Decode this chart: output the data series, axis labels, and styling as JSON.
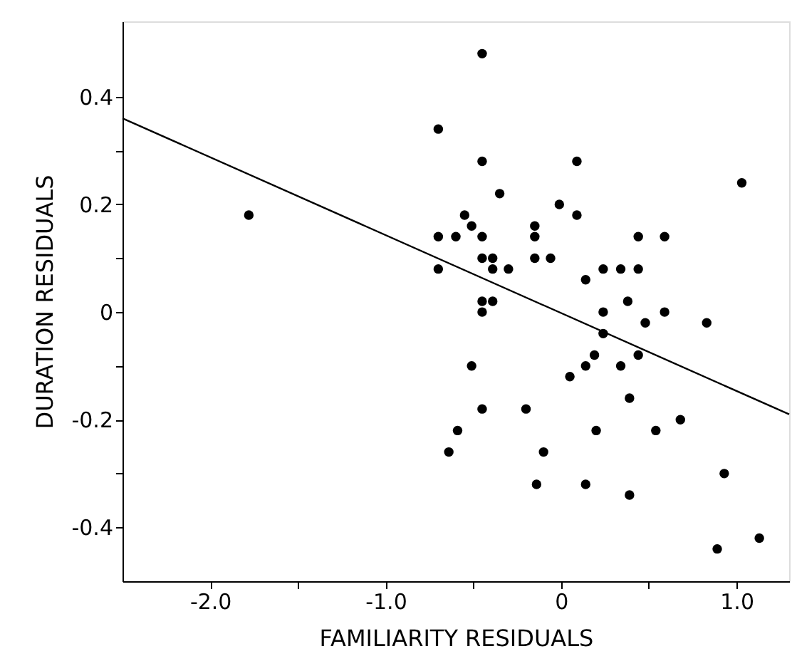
{
  "chart_data": {
    "type": "scatter",
    "xlabel": "FAMILIARITY RESIDUALS",
    "ylabel": "DURATION RESIDUALS",
    "xlim": [
      -2.5,
      1.3
    ],
    "ylim": [
      -0.5,
      0.54
    ],
    "xticks": [
      {
        "value": -2.0,
        "label": "-2.0"
      },
      {
        "value": -1.5,
        "label": null
      },
      {
        "value": -1.0,
        "label": "-1.0"
      },
      {
        "value": -0.5,
        "label": null
      },
      0,
      {
        "value": 0.5,
        "label": null
      },
      {
        "value": 1.0,
        "label": "1.0"
      }
    ],
    "yticks": [
      -0.4,
      {
        "value": -0.3,
        "label": null
      },
      -0.2,
      {
        "value": -0.1,
        "label": null
      },
      0,
      {
        "value": 0.1,
        "label": null
      },
      0.2,
      {
        "value": 0.3,
        "label": null
      },
      0.4
    ],
    "grid": false,
    "series": [
      {
        "color": "#000000",
        "marker": "circle",
        "x": [
          -1.78,
          -0.7,
          -0.7,
          -0.7,
          -0.45,
          -0.45,
          0.09,
          1.03,
          -0.35,
          -0.01,
          -0.55,
          0.09,
          -0.51,
          -0.15,
          -0.6,
          -0.45,
          -0.15,
          0.44,
          0.59,
          -0.45,
          -0.39,
          -0.15,
          -0.06,
          -0.39,
          -0.3,
          0.24,
          0.34,
          0.44,
          0.14,
          -0.45,
          -0.39,
          -0.45,
          0.38,
          0.24,
          0.59,
          0.48,
          0.83,
          0.24,
          0.19,
          0.44,
          -0.51,
          0.14,
          0.34,
          0.05,
          0.39,
          -0.45,
          -0.2,
          0.68,
          -0.59,
          0.2,
          0.54,
          -0.64,
          -0.1,
          0.93,
          -0.14,
          0.14,
          0.39,
          1.13,
          0.89
        ],
        "values": [
          0.18,
          0.34,
          0.14,
          0.08,
          0.48,
          0.28,
          0.28,
          0.24,
          0.22,
          0.2,
          0.18,
          0.18,
          0.16,
          0.16,
          0.14,
          0.14,
          0.14,
          0.14,
          0.14,
          0.1,
          0.1,
          0.1,
          0.1,
          0.08,
          0.08,
          0.08,
          0.08,
          0.08,
          0.06,
          0.02,
          0.02,
          0.0,
          0.02,
          0.0,
          0.0,
          -0.02,
          -0.02,
          -0.04,
          -0.08,
          -0.08,
          -0.1,
          -0.1,
          -0.1,
          -0.12,
          -0.16,
          -0.18,
          -0.18,
          -0.2,
          -0.22,
          -0.22,
          -0.22,
          -0.26,
          -0.26,
          -0.3,
          -0.32,
          -0.32,
          -0.34,
          -0.42,
          -0.44
        ]
      },
      {
        "type": "line",
        "color": "#000000",
        "line_style": "solid",
        "marker": "none",
        "x": [
          -2.5,
          1.3
        ],
        "values": [
          0.36,
          -0.19
        ]
      }
    ]
  }
}
